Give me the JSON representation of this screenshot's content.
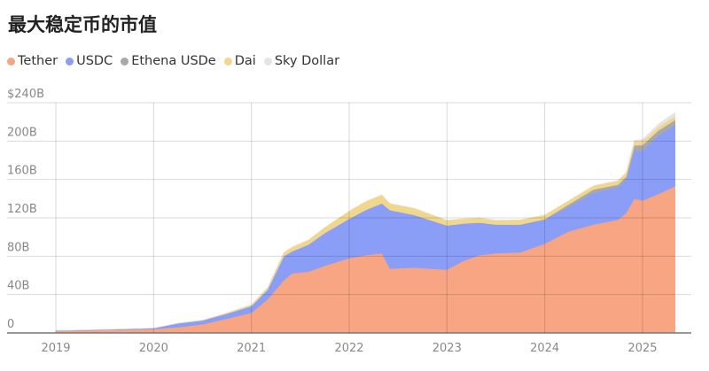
{
  "chart_data": {
    "type": "area",
    "stacked": true,
    "title": "最大稳定币的市值",
    "xlabel": "",
    "ylabel": "",
    "ylim": [
      0,
      240
    ],
    "xlim": [
      "2019-01",
      "2025-12"
    ],
    "grid": true,
    "legend_position": "top-left",
    "y_ticks": [
      0,
      40,
      80,
      120,
      160,
      200,
      240
    ],
    "y_tick_labels": [
      "0",
      "40B",
      "80B",
      "120B",
      "160B",
      "200B",
      "$240B"
    ],
    "x_tick_labels": [
      "2019",
      "2020",
      "2021",
      "2022",
      "2023",
      "2024",
      "2025"
    ],
    "x": [
      "2019-01",
      "2019-07",
      "2020-01",
      "2020-04",
      "2020-07",
      "2020-10",
      "2021-01",
      "2021-03",
      "2021-05",
      "2021-06",
      "2021-08",
      "2021-10",
      "2022-01",
      "2022-03",
      "2022-05",
      "2022-06",
      "2022-09",
      "2023-01",
      "2023-03",
      "2023-05",
      "2023-07",
      "2023-10",
      "2024-01",
      "2024-04",
      "2024-07",
      "2024-10",
      "2024-11",
      "2024-12",
      "2025-01",
      "2025-03",
      "2025-05"
    ],
    "series": [
      {
        "name": "Tether",
        "color": "#f7a582",
        "values": [
          2,
          3,
          4,
          6,
          9,
          15,
          21,
          35,
          55,
          62,
          64,
          70,
          78,
          81,
          83,
          67,
          68,
          66,
          75,
          81,
          83,
          84,
          93,
          106,
          113,
          118,
          125,
          140,
          138,
          145,
          153
        ]
      },
      {
        "name": "USDC",
        "color": "#8a9ef8",
        "values": [
          0.5,
          0.5,
          1,
          4,
          4,
          5,
          7,
          10,
          25,
          23,
          28,
          34,
          41,
          47,
          52,
          61,
          55,
          46,
          39,
          34,
          30,
          29,
          25,
          26,
          33,
          34,
          35,
          50,
          52,
          61,
          64
        ]
      },
      {
        "name": "Ethena USDe",
        "color": "#a8a8a8",
        "values": [
          0,
          0,
          0,
          0,
          0,
          0,
          0,
          0,
          0,
          0,
          0,
          0,
          0,
          0,
          0,
          0,
          0,
          0,
          0,
          0,
          0,
          0,
          0.5,
          2.3,
          3.5,
          2.6,
          3,
          5.5,
          5.8,
          5.3,
          5
        ]
      },
      {
        "name": "Dai",
        "color": "#f1d78b",
        "values": [
          0.1,
          0.2,
          0.1,
          0.2,
          0.4,
          1,
          1.5,
          2.5,
          4,
          4.5,
          5,
          6,
          8,
          9,
          9,
          7,
          7,
          5.5,
          5,
          5,
          4.5,
          5,
          4.5,
          4,
          4,
          4,
          4,
          4,
          4,
          4,
          4
        ]
      },
      {
        "name": "Sky Dollar",
        "color": "#e4e4e4",
        "values": [
          0,
          0,
          0,
          0,
          0,
          0,
          0,
          0,
          0,
          0,
          0,
          0,
          0,
          0,
          0,
          0,
          0,
          0,
          0,
          0,
          0,
          0,
          0,
          0,
          0,
          0.5,
          1,
          1.5,
          2,
          3,
          4
        ]
      }
    ]
  }
}
